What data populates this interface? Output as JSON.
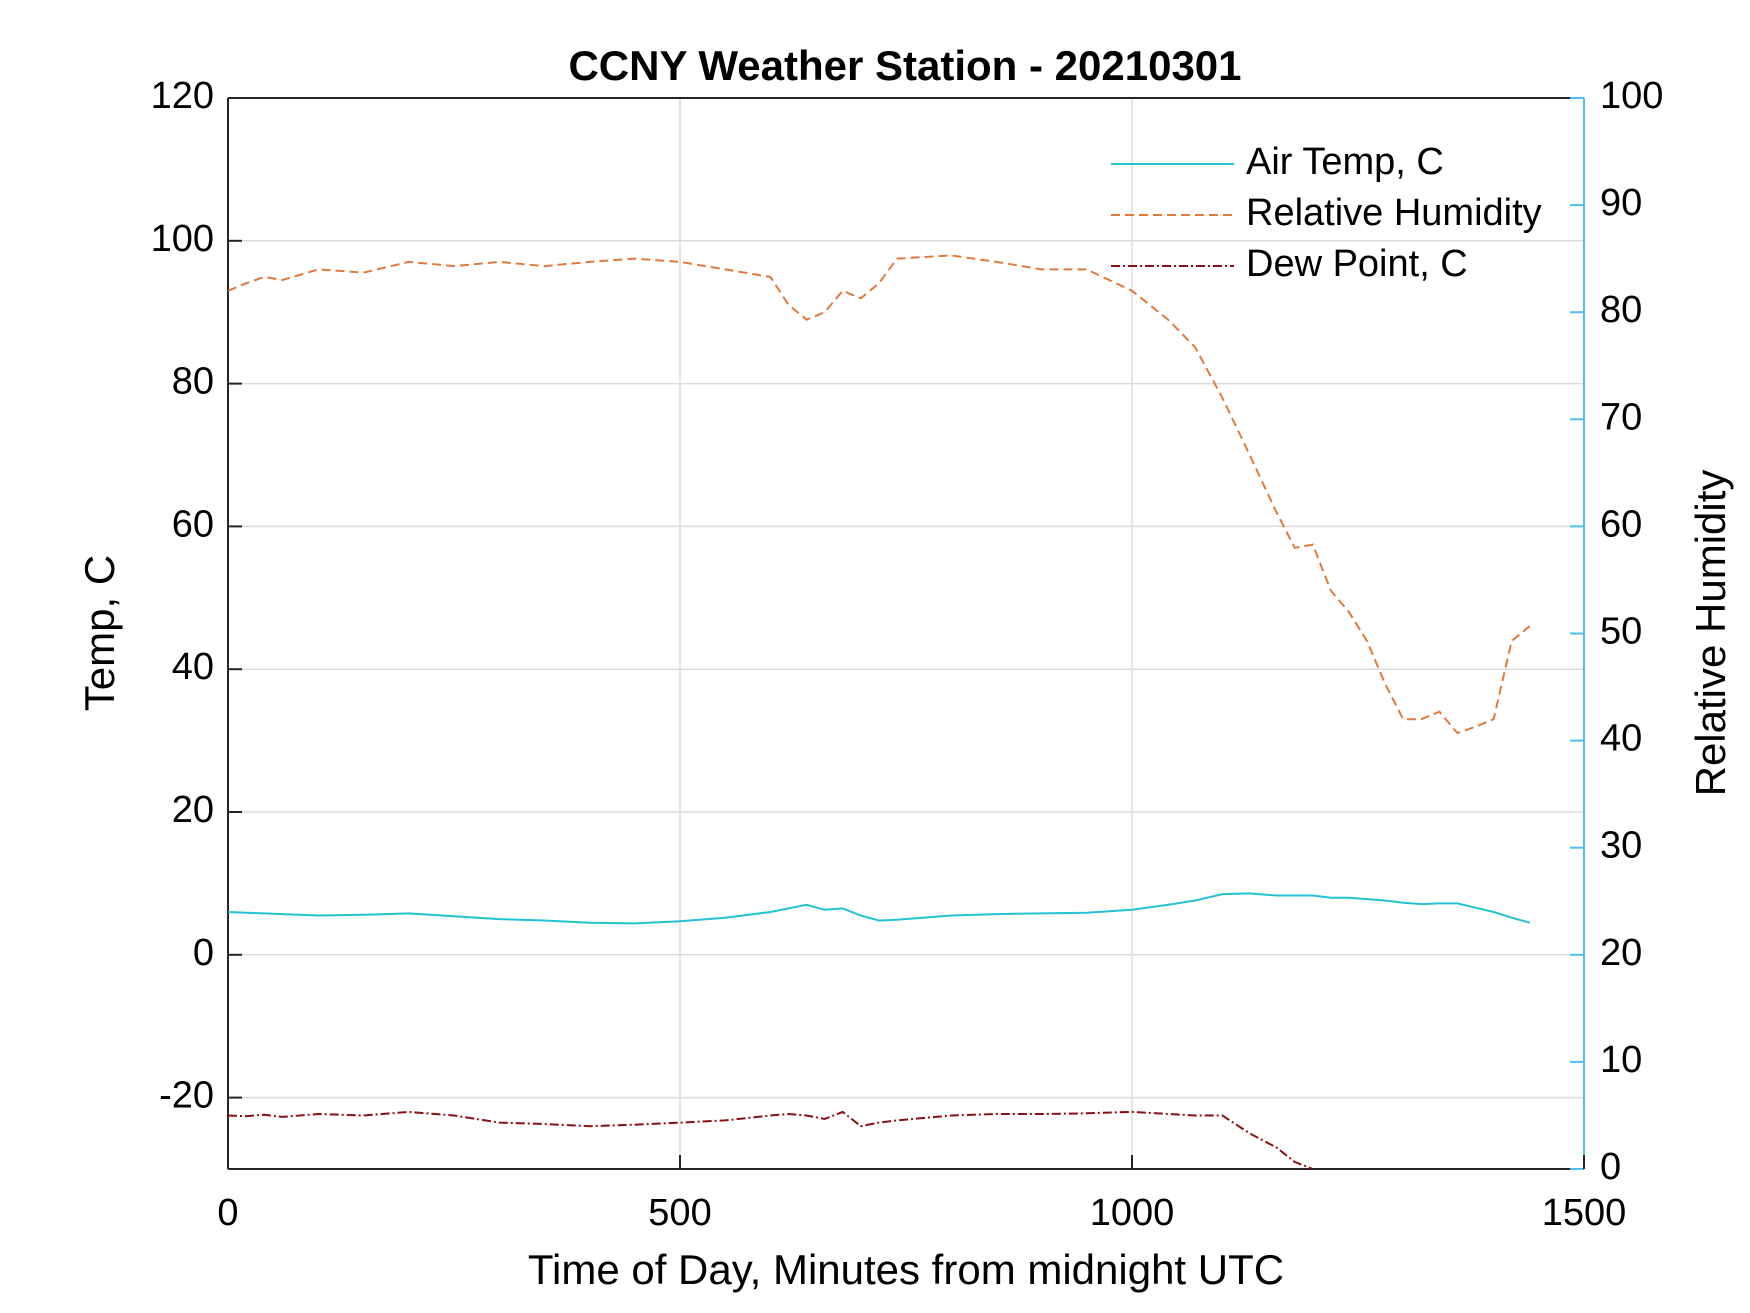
{
  "chart_data": {
    "type": "line",
    "title": "CCNY Weather Station - 20210301",
    "xlabel": "Time of Day, Minutes from midnight UTC",
    "ylabel": "Temp, C",
    "y2label": "Relative Humidity",
    "xlim": [
      0,
      1500
    ],
    "xticks": [
      0,
      500,
      1000,
      1500
    ],
    "ylim": [
      -30,
      120
    ],
    "yticks": [
      -20,
      0,
      20,
      40,
      60,
      80,
      100,
      120
    ],
    "y2lim": [
      0,
      100
    ],
    "y2ticks": [
      0,
      10,
      20,
      30,
      40,
      50,
      60,
      70,
      80,
      90,
      100
    ],
    "y2color": "#4dbeee",
    "grid": true,
    "legend": "upper right",
    "x": [
      0,
      20,
      40,
      60,
      100,
      150,
      200,
      250,
      300,
      350,
      400,
      450,
      500,
      550,
      600,
      620,
      640,
      660,
      680,
      700,
      720,
      740,
      800,
      850,
      900,
      950,
      1000,
      1040,
      1070,
      1100,
      1130,
      1160,
      1180,
      1200,
      1220,
      1240,
      1260,
      1280,
      1300,
      1320,
      1340,
      1360,
      1380,
      1400,
      1420,
      1440
    ],
    "series": [
      {
        "name": "Air Temp, C",
        "color": "#24c3d4",
        "dash": "solid",
        "values": [
          6,
          5.9,
          5.8,
          5.7,
          5.5,
          5.6,
          5.8,
          5.4,
          5,
          4.8,
          4.5,
          4.4,
          4.7,
          5.2,
          6,
          6.5,
          7,
          6.3,
          6.5,
          5.5,
          4.8,
          4.9,
          5.5,
          5.7,
          5.8,
          5.9,
          6.3,
          7,
          7.6,
          8.5,
          8.6,
          8.3,
          8.3,
          8.3,
          8,
          8,
          7.8,
          7.6,
          7.3,
          7.1,
          7.2,
          7.2,
          6.6,
          6,
          5.2,
          4.5
        ]
      },
      {
        "name": "Relative Humidity",
        "color": "#e07b3c",
        "dash": "dashed",
        "axis": "y2",
        "values": [
          82,
          82.7,
          83.3,
          83,
          84,
          83.7,
          84.7,
          84.3,
          84.7,
          84.3,
          84.7,
          85,
          84.7,
          84,
          83.3,
          80.7,
          79.3,
          80,
          82,
          81.3,
          82.7,
          85,
          85.3,
          84.7,
          84,
          84,
          82,
          79.3,
          76.7,
          72,
          66.7,
          61.3,
          58,
          58.3,
          54,
          52,
          49.3,
          45.3,
          42,
          42,
          42.7,
          40.7,
          41.3,
          42,
          49.3,
          50.7
        ]
      },
      {
        "name": "Dew Point, C",
        "color": "#8b1010",
        "dash": "dashdot",
        "values": [
          -22.5,
          -22.6,
          -22.4,
          -22.7,
          -22.3,
          -22.5,
          -22,
          -22.5,
          -23.5,
          -23.7,
          -24,
          -23.8,
          -23.5,
          -23.2,
          -22.5,
          -22.3,
          -22.5,
          -23,
          -22,
          -24,
          -23.5,
          -23.2,
          -22.5,
          -22.3,
          -22.3,
          -22.2,
          -22,
          -22.3,
          -22.5,
          -22.5,
          -25,
          -27,
          -29,
          -30,
          null,
          null,
          null,
          null,
          null,
          null,
          null,
          null,
          null,
          null,
          null,
          null
        ]
      }
    ]
  }
}
